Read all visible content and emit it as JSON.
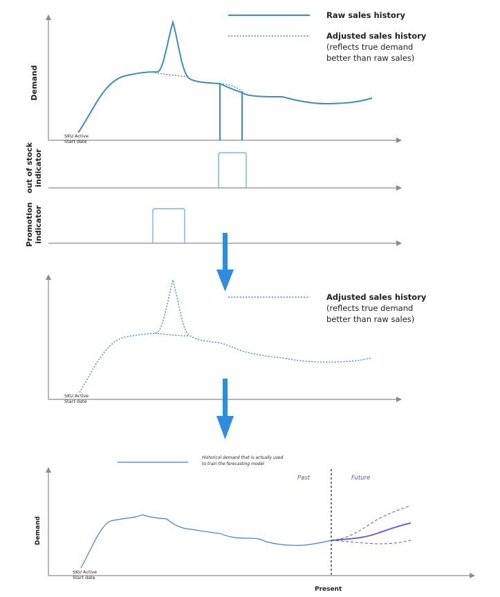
{
  "panel1": {
    "ylabel": "Demand",
    "start_label_line1": "SKU Active",
    "start_label_line2": "Start date",
    "legend_raw": "Raw sales history",
    "legend_adj": "Adjusted sales history",
    "legend_adj_note1": "(reflects true demand",
    "legend_adj_note2": "better than raw sales)"
  },
  "panel2": {
    "ylabel_line1": "out of stock",
    "ylabel_line2": "indicator"
  },
  "panel3": {
    "ylabel_line1": "Promotion",
    "ylabel_line2": "indicator"
  },
  "panel4": {
    "start_label_line1": "SKU Active",
    "start_label_line2": "Start date",
    "legend_adj": "Adjusted sales history",
    "legend_adj_note1": "(reflects true demand",
    "legend_adj_note2": "better than raw sales)"
  },
  "panel5": {
    "ylabel": "Demand",
    "xlabel": "Present",
    "start_label_line1": "SKU Active",
    "start_label_line2": "Start date",
    "legend_line1": "Historical demand that is actually used",
    "legend_line2": "to train the forecasting model",
    "past_label": "Past",
    "future_label": "Future"
  },
  "colors": {
    "raw": "#3a8fb7",
    "historical": "#3f7fd6",
    "forecast": "#6a5ee0",
    "flow_arrow": "#2e8de0"
  }
}
